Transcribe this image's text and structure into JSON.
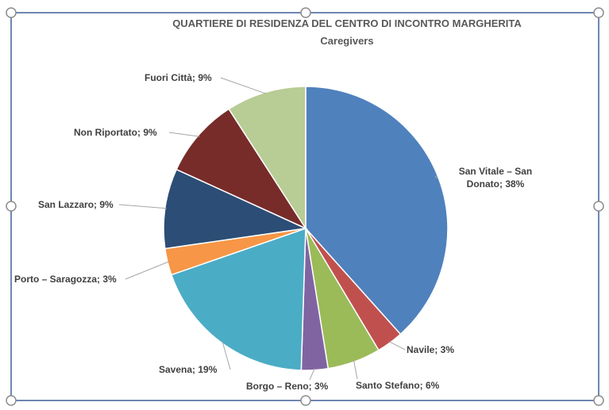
{
  "chart_data": {
    "type": "pie",
    "title": "QUARTIERE DI RESIDENZA DEL CENTRO DI INCONTRO MARGHERITA",
    "subtitle": "Caregivers",
    "values": [
      38,
      3,
      6,
      3,
      19,
      3,
      9,
      9,
      9
    ],
    "value_labels": [
      "San Vitale – San Donato; 38%",
      "Navile; 3%",
      "Santo Stefano; 6%",
      "Borgo – Reno; 3%",
      "Savena; 19%",
      "Porto – Saragozza; 3%",
      "San Lazzaro; 9%",
      "Non Riportato; 9%",
      "Fuori Città; 9%"
    ],
    "colors": [
      "#4f81bd",
      "#c0504d",
      "#9bbb59",
      "#8064a2",
      "#4bacc6",
      "#f79646",
      "#2c4d75",
      "#772c2a",
      "#b8cc95"
    ]
  }
}
